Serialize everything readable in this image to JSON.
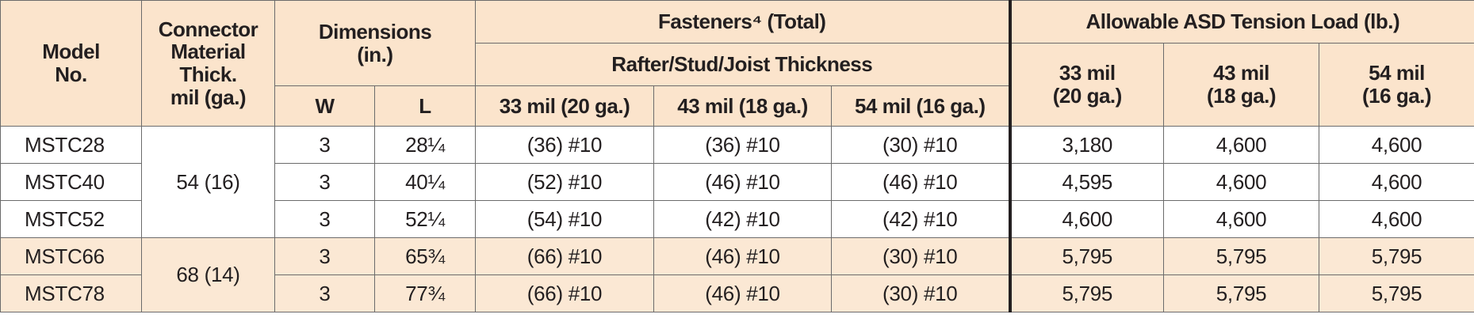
{
  "header": {
    "model": "Model\nNo.",
    "connector": "Connector\nMaterial\nThick.\nmil (ga.)",
    "dimensions": "Dimensions\n(in.)",
    "w": "W",
    "l": "L",
    "fasteners": "Fasteners⁴ (Total)",
    "thickness": "Rafter/Stud/Joist Thickness",
    "fastener_cols": [
      "33 mil (20 ga.)",
      "43 mil (18 ga.)",
      "54 mil (16 ga.)"
    ],
    "asd": "Allowable ASD Tension Load (lb.)",
    "asd_cols": [
      "33 mil\n(20 ga.)",
      "43 mil\n(18 ga.)",
      "54 mil\n(16 ga.)"
    ]
  },
  "groups": [
    {
      "thickness": "54 (16)",
      "rows": [
        [
          "MSTC28",
          "3",
          "28¼",
          "(36) #10",
          "(36) #10",
          "(30) #10",
          "3,180",
          "4,600",
          "4,600"
        ],
        [
          "MSTC40",
          "3",
          "40¼",
          "(52) #10",
          "(46) #10",
          "(46) #10",
          "4,595",
          "4,600",
          "4,600"
        ],
        [
          "MSTC52",
          "3",
          "52¼",
          "(54) #10",
          "(42) #10",
          "(42) #10",
          "4,600",
          "4,600",
          "4,600"
        ]
      ]
    },
    {
      "thickness": "68 (14)",
      "rows": [
        [
          "MSTC66",
          "3",
          "65¾",
          "(66) #10",
          "(46) #10",
          "(30) #10",
          "5,795",
          "5,795",
          "5,795"
        ],
        [
          "MSTC78",
          "3",
          "77¾",
          "(66) #10",
          "(46) #10",
          "(30) #10",
          "5,795",
          "5,795",
          "5,795"
        ]
      ]
    }
  ]
}
